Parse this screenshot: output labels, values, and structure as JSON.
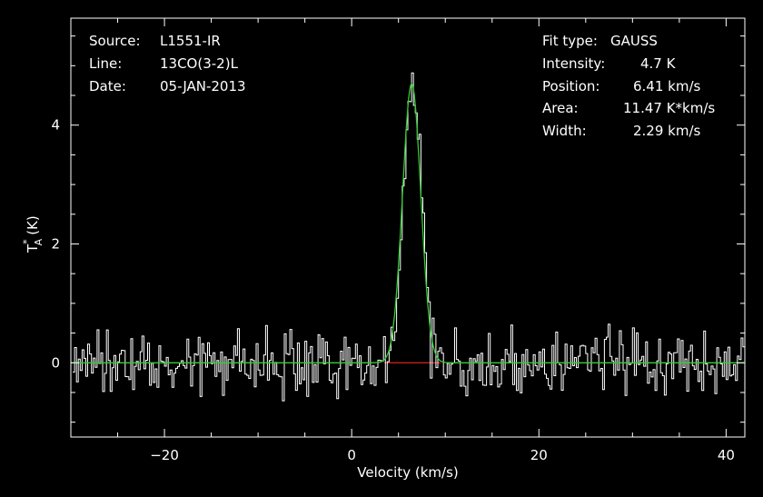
{
  "info_left": {
    "source_label": "Source:",
    "source_value": "L1551-IR",
    "line_label": "Line:",
    "line_value": "13CO(3-2)L",
    "date_label": "Date:",
    "date_value": "05-JAN-2013"
  },
  "info_right": {
    "fit_type_label": "Fit type:",
    "fit_type_value": "GAUSS",
    "intensity_label": "Intensity:",
    "intensity_value": "4.7 K",
    "position_label": "Position:",
    "position_value": "6.41 km/s",
    "area_label": "Area:",
    "area_value": "11.47 K*km/s",
    "width_label": "Width:",
    "width_value": "2.29 km/s"
  },
  "colors": {
    "background": "#000000",
    "frame": "#ffffff",
    "spectrum": "#ffffff",
    "fit": "#33cc33",
    "baseline": "#dd2222"
  },
  "chart_data": {
    "type": "line",
    "xlabel": "Velocity (km/s)",
    "ylabel": "T",
    "ylabel_sup": "*",
    "ylabel_sub": "A",
    "ylabel_unit": "(K)",
    "xlim": [
      -30,
      42
    ],
    "ylim": [
      -1.25,
      5.8
    ],
    "x_ticks": [
      -20,
      0,
      20,
      40
    ],
    "y_ticks": [
      0,
      2,
      4
    ],
    "x_ticks_labels": [
      "−20",
      "0",
      "20",
      "40"
    ],
    "y_ticks_labels": [
      "0",
      "2",
      "4"
    ],
    "grid": false,
    "spectrum": {
      "style": "histogram",
      "x_start": -29.8,
      "x_step": 0.2,
      "noise_rms": 0.25,
      "peak_intensity": 4.7,
      "peak_position": 6.41,
      "peak_width": 2.29
    },
    "series": [
      {
        "name": "",
        "kind": "gaussian-fit",
        "intensity": 4.7,
        "position": 6.41,
        "width": 2.29,
        "xrange": [
          -30,
          42
        ]
      },
      {
        "name": "",
        "kind": "baseline",
        "x": [
          3.5,
          9.5
        ],
        "y": [
          0,
          0
        ]
      }
    ]
  }
}
